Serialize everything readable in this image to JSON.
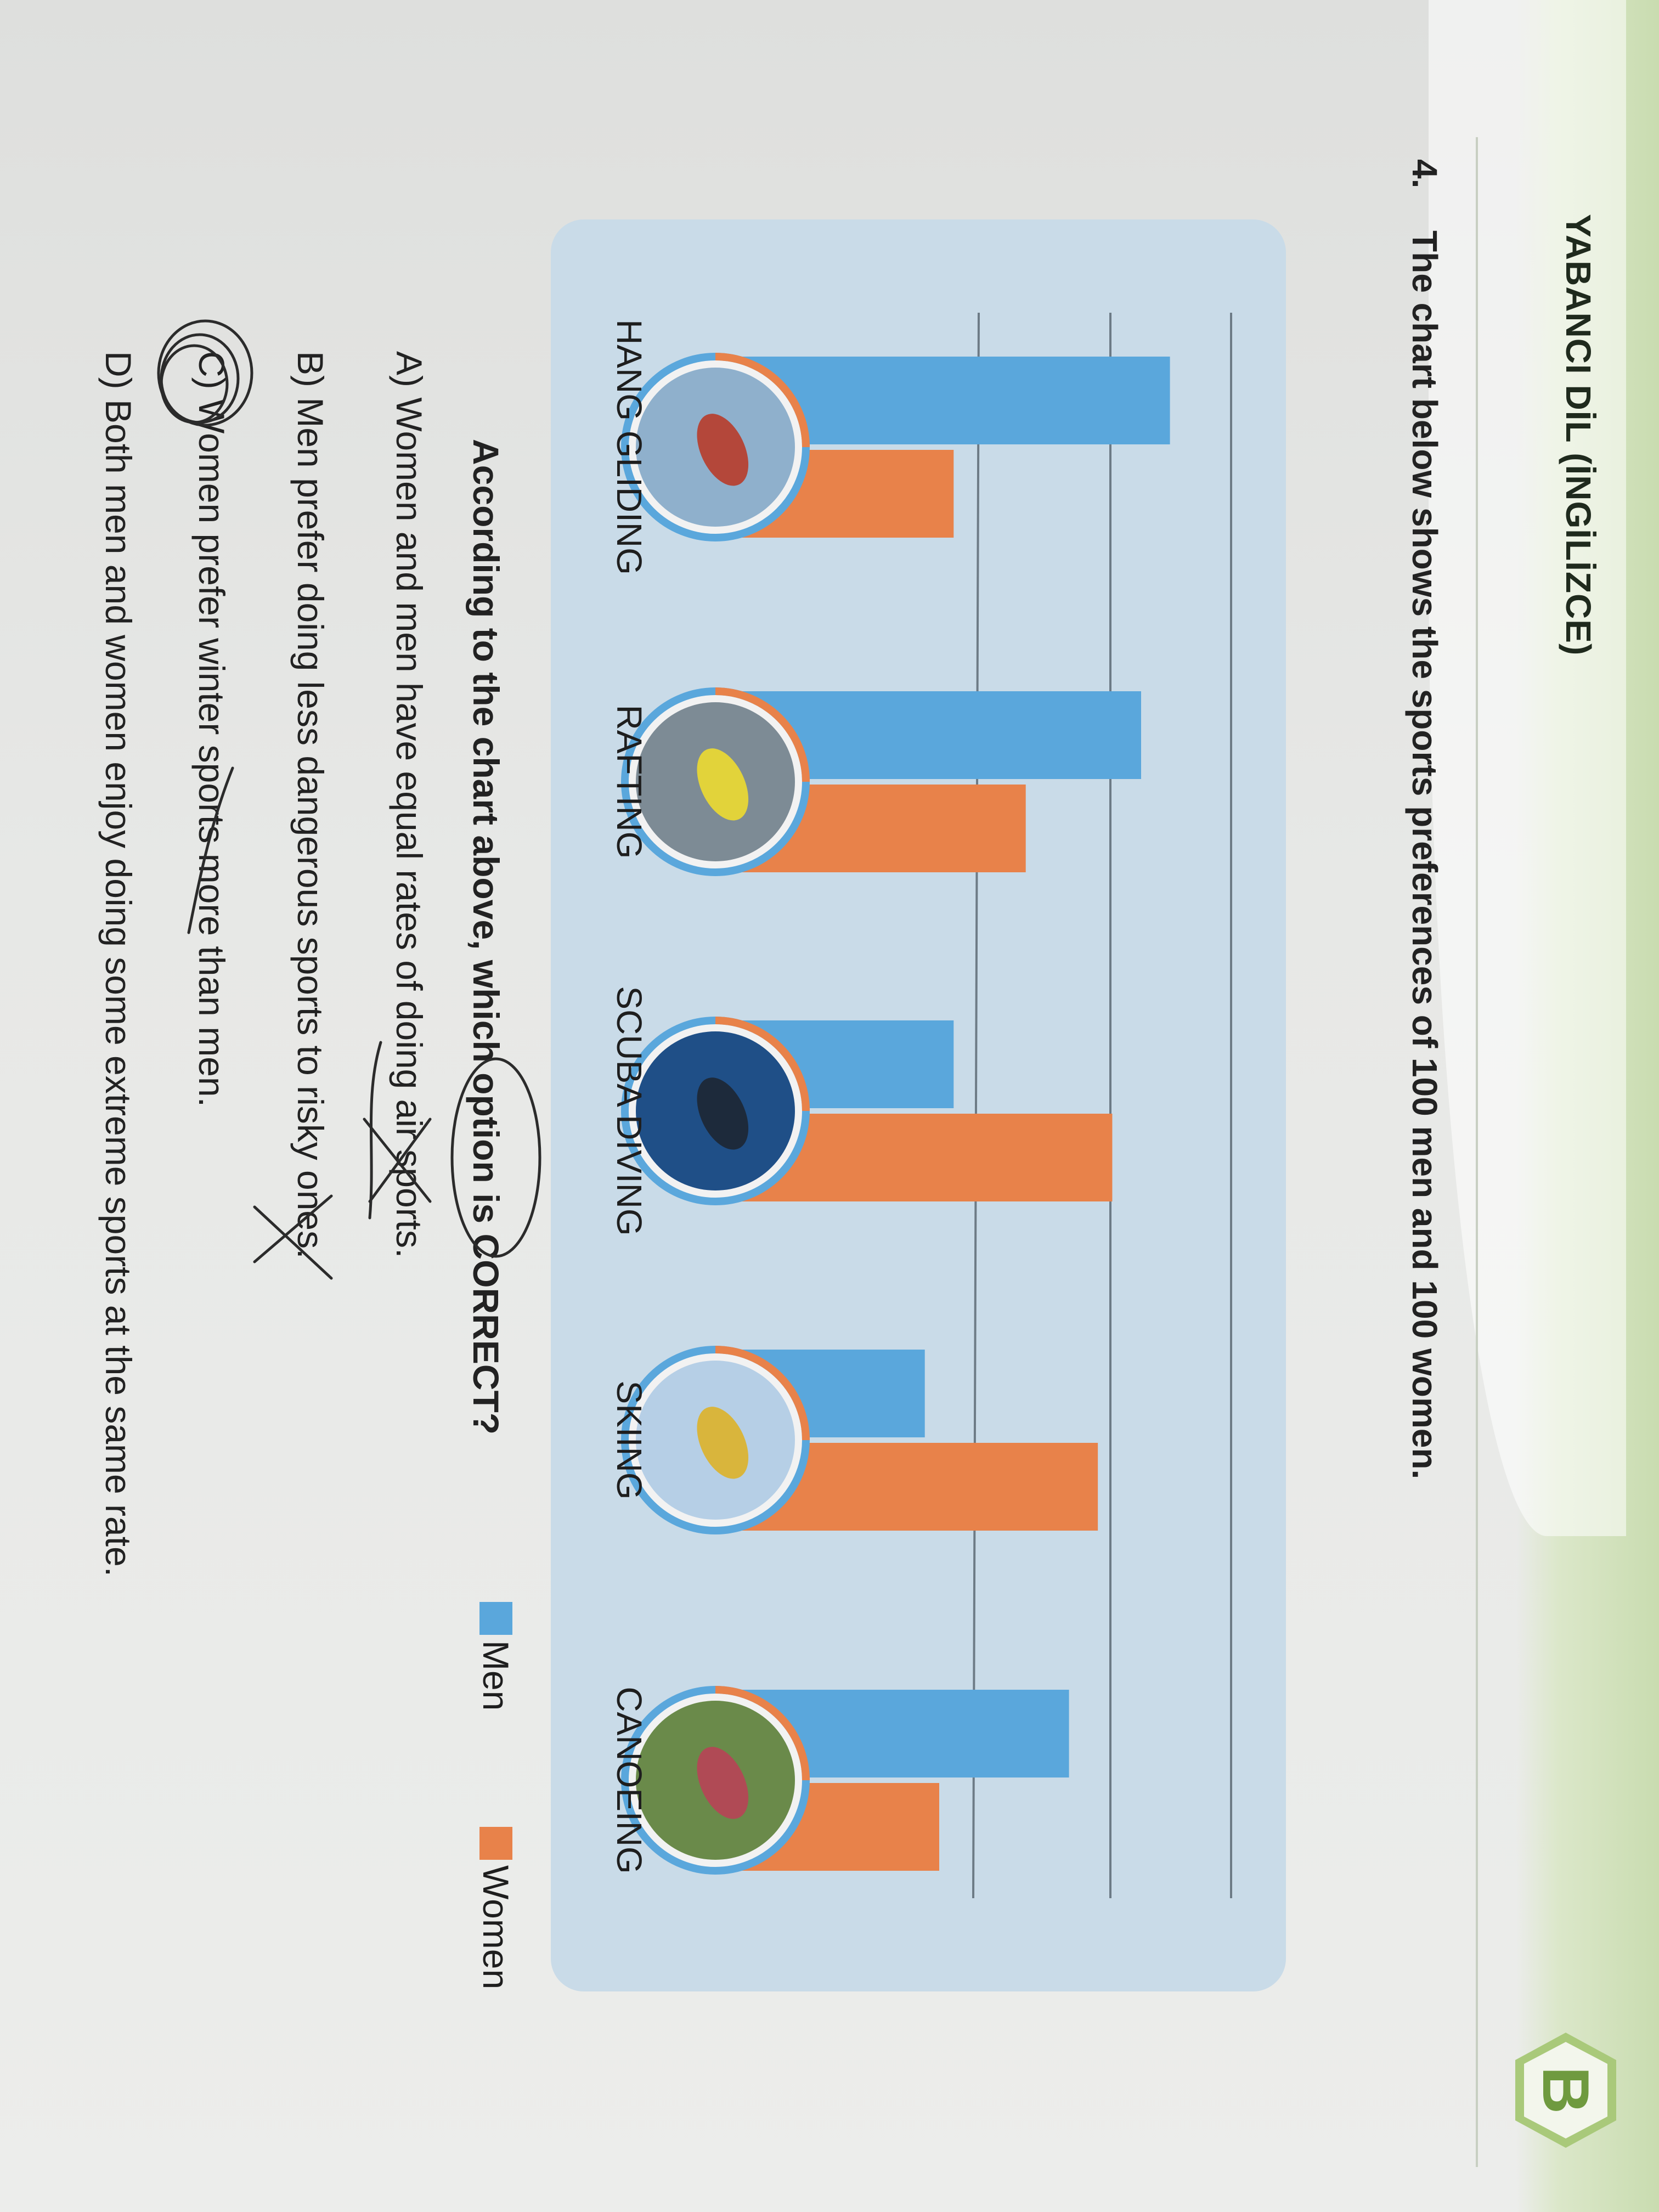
{
  "header": {
    "subject": "YABANCI DİL (İNGİLİZCE)",
    "booklet": "B"
  },
  "question": {
    "number": "4.",
    "prompt": "The chart below shows the sports preferences of 100 men and 100 women.",
    "ask": "According to the chart above, which option is CORRECT?",
    "options": [
      "A) Women and men have equal rates of doing air sports.",
      "B) Men prefer doing less dangerous sports to risky ones.",
      "C) Women prefer winter sports more than men.",
      "D) Both men and women enjoy doing some extreme sports at the same rate."
    ]
  },
  "colors": {
    "men": "#5aa7dc",
    "women": "#e8824a",
    "panel": "#c9dbe8"
  },
  "icons": [
    "hang-gliding-photo-icon",
    "rafting-photo-icon",
    "scuba-diving-photo-icon",
    "skiing-photo-icon",
    "canoeing-photo-icon"
  ],
  "chart_data": {
    "type": "bar",
    "categories": [
      "HANG GLIDING",
      "RAFTING",
      "SCUBA DIVING",
      "SKIING",
      "CANOEING"
    ],
    "series": [
      {
        "name": "Men",
        "values": [
          60,
          56,
          30,
          26,
          46
        ]
      },
      {
        "name": "Women",
        "values": [
          30,
          40,
          52,
          50,
          28
        ]
      }
    ],
    "ylim": [
      0,
      70
    ],
    "grid": true,
    "legend": "bottom-right",
    "title": "",
    "xlabel": "",
    "ylabel": ""
  }
}
